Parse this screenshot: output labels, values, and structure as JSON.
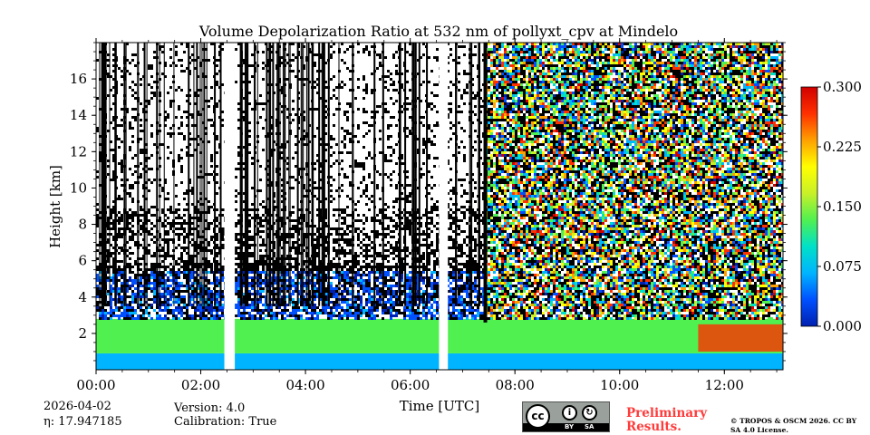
{
  "chart_data": {
    "type": "heatmap",
    "title": "Volume Depolarization Ratio at 532 nm of pollyxt_cpv at Mindelo",
    "xlabel": "Time [UTC]",
    "ylabel": "Height [km]",
    "xlim": [
      0,
      13.12
    ],
    "ylim": [
      0.0,
      18.0
    ],
    "xticks": [
      0,
      2,
      4,
      6,
      8,
      10,
      12
    ],
    "xtick_labels": [
      "00:00",
      "02:00",
      "04:00",
      "06:00",
      "08:00",
      "10:00",
      "12:00"
    ],
    "yticks": [
      2,
      4,
      6,
      8,
      10,
      12,
      14,
      16
    ],
    "ytick_labels": [
      "2",
      "4",
      "6",
      "8",
      "10",
      "12",
      "14",
      "16"
    ],
    "colorbar": {
      "vmin": 0.0,
      "vmax": 0.3,
      "ticks": [
        0.0,
        0.075,
        0.15,
        0.225,
        0.3
      ],
      "tick_labels": [
        "0.000",
        "0.075",
        "0.150",
        "0.225",
        "0.300"
      ],
      "colormap": [
        "#0020b0",
        "#0050ff",
        "#00b4ff",
        "#00e0c8",
        "#50f050",
        "#c8f028",
        "#ffff00",
        "#ffa000",
        "#ff3000",
        "#d00000"
      ]
    },
    "data_gaps_hours": [
      [
        2.45,
        2.65
      ],
      [
        6.55,
        6.72
      ]
    ],
    "layers": [
      {
        "name": "surface layer",
        "bottom_km": 0.0,
        "top_km": 0.9,
        "value": 0.05
      },
      {
        "name": "aerosol layer",
        "bottom_km": 0.9,
        "top_km": 2.8,
        "value": 0.13
      },
      {
        "name": "elevated dust layer (late)",
        "start_hour": 11.5,
        "end_hour": 13.12,
        "bottom_km": 1.0,
        "top_km": 2.5,
        "value": 0.26
      }
    ],
    "noise_onset_hour": 7.4
  },
  "meta": {
    "date": "2026-04-02",
    "eta": "η: 17.947185",
    "version": "Version: 4.0",
    "calibration": "Calibration: True"
  },
  "license": {
    "preliminary": "Preliminary Results.",
    "copyright": "© TROPOS & OSCM 2026. CC BY SA 4.0 License.",
    "badge_cc": "cc",
    "badge_by": "BY",
    "badge_sa": "SA"
  }
}
